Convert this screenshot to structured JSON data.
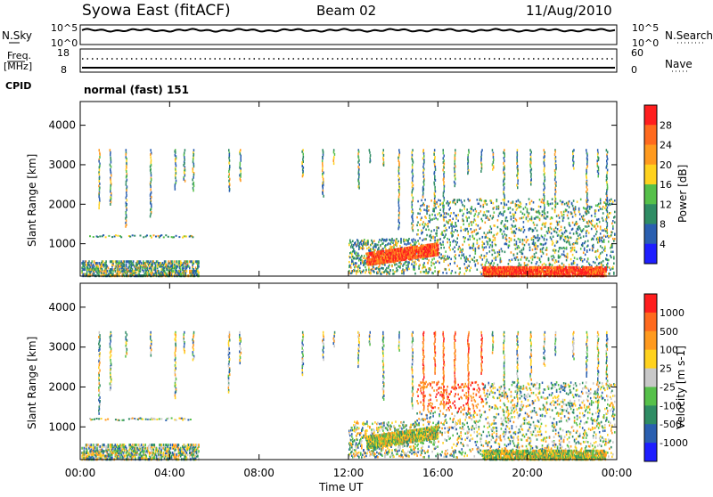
{
  "header": {
    "station": "Syowa East (fitACF)",
    "beam": "Beam 02",
    "date": "11/Aug/2010"
  },
  "top_panels": {
    "nsky_label": "N.Sky",
    "nsky_ticks": [
      "10^5",
      "10^0"
    ],
    "nsearch_label": "N.Search",
    "nsearch_ticks": [
      "10^5",
      "10^0"
    ],
    "freq_label": "Freq.",
    "freq_unit": "[MHz]",
    "freq_ticks": [
      "18",
      "8"
    ],
    "nave_label": "Nave",
    "nave_ticks": [
      "60",
      "0"
    ],
    "cpid_label": "CPID",
    "cpid_text": "normal (fast) 151"
  },
  "axes": {
    "ylabel": "Slant Range [km]",
    "xlabel": "Time UT",
    "y_ticks": [
      1000,
      2000,
      3000,
      4000
    ],
    "y_range": [
      180,
      4600
    ],
    "x_ticks": [
      "00:00",
      "04:00",
      "08:00",
      "12:00",
      "16:00",
      "20:00",
      "00:00"
    ],
    "x_range_hours": [
      0,
      24
    ]
  },
  "chart_data": [
    {
      "type": "heatmap",
      "quantity": "Power",
      "colorbar_label": "Power [dB]",
      "colorbar_ticks": [
        "4",
        "8",
        "12",
        "16",
        "20",
        "24",
        "28"
      ],
      "colorbar_colors": [
        "#1e1eff",
        "#2a5fb0",
        "#2f8c64",
        "#56c04a",
        "#ffd21e",
        "#ff9a1e",
        "#ff6a1e",
        "#ff1e1e"
      ],
      "range": [
        0,
        30
      ],
      "x_hours": [
        0,
        24
      ],
      "y_km": [
        180,
        4600
      ]
    },
    {
      "type": "heatmap",
      "quantity": "Velocity",
      "colorbar_label": "Velocity [m s-1]",
      "colorbar_ticks": [
        "1000",
        "500",
        "100",
        "25",
        "-25",
        "-100",
        "-500",
        "-1000"
      ],
      "colorbar_colors": [
        "#1e1eff",
        "#2a5fb0",
        "#2f8c64",
        "#56c04a",
        "#c8c8c8",
        "#ffd21e",
        "#ff9a1e",
        "#ff6a1e",
        "#ff1e1e"
      ],
      "range": [
        -1000,
        1000
      ],
      "x_hours": [
        0,
        24
      ],
      "y_km": [
        180,
        4600
      ]
    }
  ],
  "colors": {
    "ground_scatter": "#9a9a9a"
  }
}
